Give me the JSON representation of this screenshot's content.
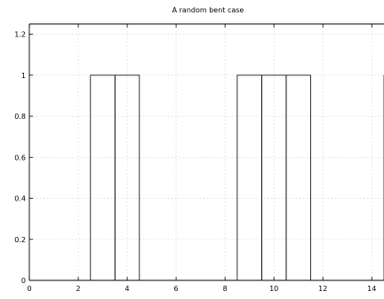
{
  "chart_data": {
    "type": "bar",
    "title": "A random bent case",
    "xlabel": "",
    "ylabel": "",
    "xlim": [
      0,
      14.5
    ],
    "ylim": [
      0,
      1.25
    ],
    "grid": true,
    "x_ticks": [
      0,
      2,
      4,
      6,
      8,
      10,
      12,
      14
    ],
    "y_ticks": [
      0,
      0.2,
      0.4,
      0.6,
      0.8,
      1,
      1.2
    ],
    "bar_width": 1,
    "bars": [
      {
        "x": 3,
        "value": 1
      },
      {
        "x": 4,
        "value": 1
      },
      {
        "x": 9,
        "value": 1
      },
      {
        "x": 10,
        "value": 1
      },
      {
        "x": 11,
        "value": 1
      },
      {
        "x": 15,
        "value": 1
      }
    ]
  }
}
